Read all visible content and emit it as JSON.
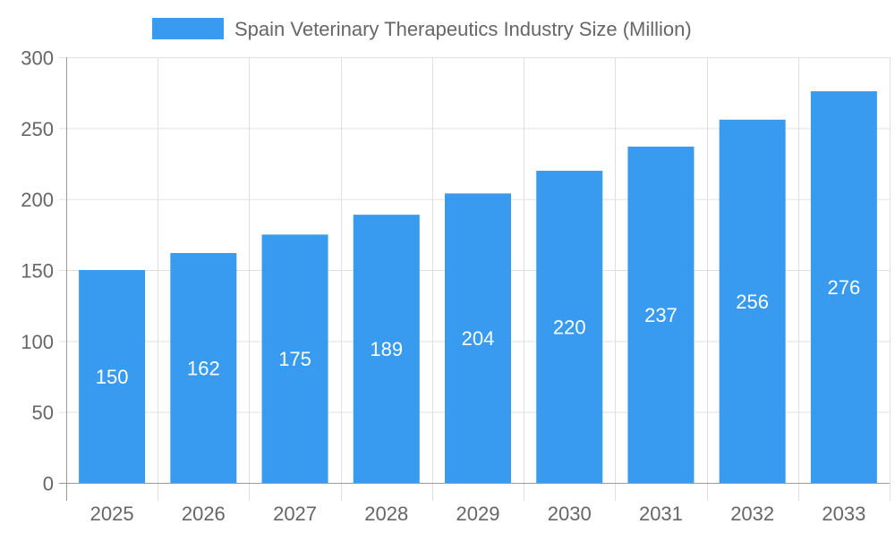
{
  "chart_data": {
    "type": "bar",
    "title": "",
    "xlabel": "",
    "ylabel": "",
    "categories": [
      "2025",
      "2026",
      "2027",
      "2028",
      "2029",
      "2030",
      "2031",
      "2032",
      "2033"
    ],
    "series": [
      {
        "name": "Spain Veterinary Therapeutics Industry Size (Million)",
        "values": [
          150,
          162,
          175,
          189,
          204,
          220,
          237,
          256,
          276
        ]
      }
    ],
    "ylim": [
      0,
      300
    ],
    "yticks": [
      0,
      50,
      100,
      150,
      200,
      250,
      300
    ],
    "grid": true,
    "legend_position": "top",
    "data_labels": true,
    "colors": {
      "bar": "#389BEF",
      "grid": "#E0E0E0",
      "axis_text": "#666666",
      "label": "#FFFFFF"
    }
  }
}
